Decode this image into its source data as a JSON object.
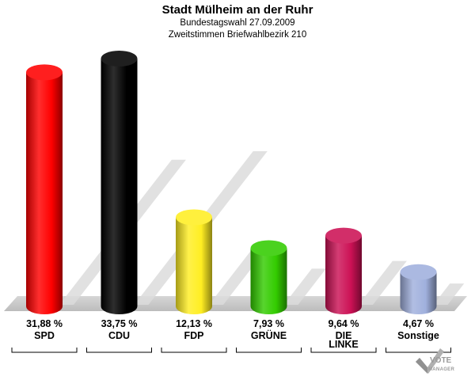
{
  "header": {
    "title": "Stadt Mülheim an der Ruhr",
    "subtitle1": "Bundestagswahl 27.09.2009",
    "subtitle2": "Zweitstimmen Briefwahlbezirk 210"
  },
  "logo": {
    "line1": "VOTE",
    "line2": "MANAGER"
  },
  "chart_data": {
    "type": "bar",
    "title": "Stadt Mülheim an der Ruhr",
    "subtitle": [
      "Bundestagswahl 27.09.2009",
      "Zweitstimmen Briefwahlbezirk 210"
    ],
    "categories": [
      "SPD",
      "CDU",
      "FDP",
      "GRÜNE",
      "DIE LINKE",
      "Sonstige"
    ],
    "category_lines": [
      [
        "SPD"
      ],
      [
        "CDU"
      ],
      [
        "FDP"
      ],
      [
        "GRÜNE"
      ],
      [
        "DIE",
        "LINKE"
      ],
      [
        "Sonstige"
      ]
    ],
    "values": [
      31.88,
      33.75,
      12.13,
      7.93,
      9.64,
      4.67
    ],
    "value_labels": [
      "31,88 %",
      "33,75 %",
      "12,13 %",
      "7,93 %",
      "9,64 %",
      "4,67 %"
    ],
    "colors": [
      "#ff0000",
      "#000000",
      "#ffee22",
      "#33cc00",
      "#cc1155",
      "#a0b0dd"
    ],
    "unit": "%",
    "ylim": [
      0,
      33.75
    ],
    "grid": false,
    "legend": "none"
  }
}
